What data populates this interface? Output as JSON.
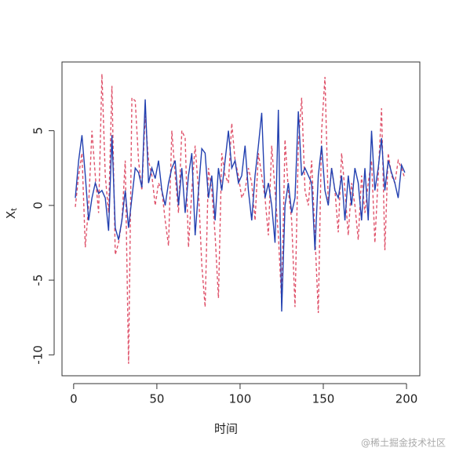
{
  "chart_data": {
    "type": "line",
    "xlabel": "时间",
    "ylabel": "X",
    "ylabel_subscript": "t",
    "watermark": "@稀土掘金技术社区",
    "x": [
      1,
      3,
      5,
      7,
      9,
      11,
      13,
      15,
      17,
      19,
      21,
      23,
      25,
      27,
      29,
      31,
      33,
      35,
      37,
      39,
      41,
      43,
      45,
      47,
      49,
      51,
      53,
      55,
      57,
      59,
      61,
      63,
      65,
      67,
      69,
      71,
      73,
      75,
      77,
      79,
      81,
      83,
      85,
      87,
      89,
      91,
      93,
      95,
      97,
      99,
      101,
      103,
      105,
      107,
      109,
      111,
      113,
      115,
      117,
      119,
      121,
      123,
      125,
      127,
      129,
      131,
      133,
      135,
      137,
      139,
      141,
      143,
      145,
      147,
      149,
      151,
      153,
      155,
      157,
      159,
      161,
      163,
      165,
      167,
      169,
      171,
      173,
      175,
      177,
      179,
      181,
      183,
      185,
      187,
      189,
      191,
      193,
      195,
      197,
      199
    ],
    "series": [
      {
        "color": "#df536b",
        "linestyle": "dashed",
        "values": [
          -0.1,
          2.0,
          3.5,
          -2.8,
          0.0,
          5.0,
          2.0,
          -0.5,
          8.8,
          2.0,
          -0.5,
          8.0,
          -3.3,
          -2.5,
          -1.0,
          3.0,
          -10.6,
          7.2,
          7.0,
          3.0,
          1.0,
          6.0,
          3.0,
          2.0,
          0.0,
          1.5,
          1.0,
          -1.0,
          -2.7,
          5.0,
          2.0,
          -0.5,
          5.0,
          4.5,
          -2.8,
          1.0,
          4.0,
          1.0,
          -4.0,
          -6.8,
          2.5,
          1.0,
          -2.0,
          -6.2,
          3.5,
          2.0,
          1.5,
          5.5,
          3.0,
          2.0,
          0.5,
          1.0,
          2.5,
          1.5,
          -1.0,
          3.5,
          2.0,
          0.5,
          -2.0,
          4.0,
          1.0,
          -2.0,
          -6.5,
          4.4,
          1.0,
          -1.0,
          -6.8,
          4.0,
          7.2,
          1.0,
          0.0,
          3.0,
          -2.0,
          -7.2,
          5.0,
          8.6,
          0.0,
          2.5,
          1.0,
          -1.8,
          3.5,
          1.0,
          -2.0,
          1.5,
          0.0,
          -2.3,
          2.0,
          -0.5,
          1.5,
          3.0,
          -2.5,
          2.0,
          6.5,
          -3.0,
          3.5,
          2.0,
          1.5,
          3.0,
          2.5,
          1.8
        ]
      },
      {
        "color": "#2240b0",
        "linestyle": "solid",
        "values": [
          0.5,
          3.0,
          4.7,
          2.0,
          -1.0,
          0.5,
          1.5,
          0.8,
          1.0,
          0.5,
          -1.7,
          4.7,
          -1.5,
          -2.3,
          -1.0,
          1.0,
          -1.5,
          0.5,
          2.5,
          2.2,
          1.2,
          7.1,
          1.5,
          2.5,
          1.8,
          3.0,
          1.0,
          0.0,
          1.5,
          2.5,
          3.0,
          0.0,
          2.5,
          -0.5,
          2.0,
          3.5,
          -2.0,
          1.0,
          3.8,
          3.5,
          0.5,
          2.0,
          -1.0,
          2.5,
          1.0,
          3.0,
          5.0,
          2.5,
          3.0,
          1.5,
          2.0,
          4.0,
          1.0,
          -1.0,
          2.0,
          4.0,
          6.2,
          0.5,
          1.5,
          0.0,
          -2.5,
          6.4,
          -7.1,
          0.0,
          1.5,
          -0.5,
          0.5,
          6.3,
          2.0,
          2.5,
          2.0,
          1.5,
          -3.0,
          2.0,
          4.0,
          1.0,
          0.0,
          2.5,
          1.0,
          0.5,
          2.0,
          -1.0,
          2.0,
          0.0,
          2.5,
          1.5,
          -1.0,
          2.5,
          -1.0,
          5.0,
          1.0,
          2.5,
          4.5,
          1.0,
          3.0,
          2.2,
          1.5,
          0.5,
          2.7,
          2.2
        ]
      }
    ],
    "xlim": [
      -7,
      208
    ],
    "xticks": [
      0,
      50,
      100,
      150,
      200
    ],
    "ylim": [
      -11.4,
      9.6
    ],
    "yticks": [
      -10,
      -5,
      0,
      5
    ]
  }
}
